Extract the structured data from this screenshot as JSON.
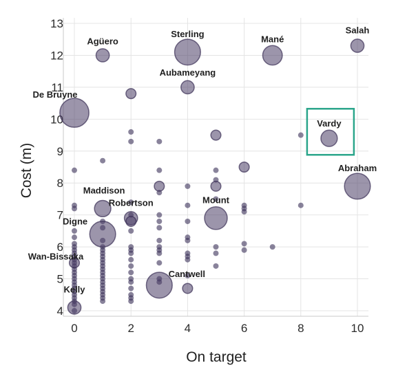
{
  "chart_data": {
    "type": "scatter",
    "xlabel": "On target",
    "ylabel": "Cost (m)",
    "xlim": [
      0,
      10
    ],
    "ylim": [
      4,
      13
    ],
    "x_ticks": [
      "0",
      "2",
      "4",
      "6",
      "8",
      "10"
    ],
    "y_ticks": [
      "4",
      "5",
      "6",
      "7",
      "8",
      "9",
      "10",
      "11",
      "12",
      "13"
    ],
    "grid": true,
    "bubbles": [
      {
        "x": 1,
        "y": 12.0,
        "size": 2,
        "label": "Agüero"
      },
      {
        "x": 4,
        "y": 12.1,
        "size": 6,
        "label": "Sterling"
      },
      {
        "x": 7,
        "y": 12.0,
        "size": 4,
        "label": "Mané"
      },
      {
        "x": 10,
        "y": 12.3,
        "size": 2,
        "label": "Salah"
      },
      {
        "x": 4,
        "y": 11.0,
        "size": 2,
        "label": "Aubameyang"
      },
      {
        "x": 0,
        "y": 10.2,
        "size": 7,
        "label": "De Bruyne"
      },
      {
        "x": 9,
        "y": 9.4,
        "size": 3,
        "label": "Vardy",
        "highlight": true
      },
      {
        "x": 10,
        "y": 7.9,
        "size": 6,
        "label": "Abraham"
      },
      {
        "x": 1,
        "y": 7.2,
        "size": 3,
        "label": "Maddison"
      },
      {
        "x": 2,
        "y": 6.9,
        "size": 2,
        "label": "Robertson"
      },
      {
        "x": 5,
        "y": 6.9,
        "size": 5,
        "label": "Mount"
      },
      {
        "x": 1,
        "y": 6.4,
        "size": 6,
        "label": "Digne"
      },
      {
        "x": 0,
        "y": 5.5,
        "size": 1,
        "label": "Wan-Bissaka"
      },
      {
        "x": 3,
        "y": 4.8,
        "size": 6,
        "label": "Cantwell"
      },
      {
        "x": 0,
        "y": 4.1,
        "size": 2,
        "label": "Kelly"
      },
      {
        "x": 2,
        "y": 10.8,
        "size": 1
      },
      {
        "x": 4,
        "y": 4.7,
        "size": 1
      },
      {
        "x": 6,
        "y": 8.5,
        "size": 1
      },
      {
        "x": 5,
        "y": 9.5,
        "size": 1
      },
      {
        "x": 2,
        "y": 6.8,
        "size": 1
      },
      {
        "x": 3,
        "y": 7.9,
        "size": 1
      },
      {
        "x": 5,
        "y": 7.9,
        "size": 1
      }
    ],
    "dots": [
      [
        0,
        8.4
      ],
      [
        0,
        7.3
      ],
      [
        0,
        7.2
      ],
      [
        0,
        6.5
      ],
      [
        0,
        6.3
      ],
      [
        0,
        6.1
      ],
      [
        0,
        6.0
      ],
      [
        0,
        5.9
      ],
      [
        0,
        5.8
      ],
      [
        0,
        5.7
      ],
      [
        0,
        5.6
      ],
      [
        0,
        5.5
      ],
      [
        0,
        5.4
      ],
      [
        0,
        5.3
      ],
      [
        0,
        5.2
      ],
      [
        0,
        5.1
      ],
      [
        0,
        5.0
      ],
      [
        0,
        4.9
      ],
      [
        0,
        4.8
      ],
      [
        0,
        4.7
      ],
      [
        0,
        4.6
      ],
      [
        0,
        4.5
      ],
      [
        0,
        4.4
      ],
      [
        0,
        4.3
      ],
      [
        0,
        4.2
      ],
      [
        0,
        4.0
      ],
      [
        1,
        8.7
      ],
      [
        1,
        6.8
      ],
      [
        1,
        6.6
      ],
      [
        1,
        6.2
      ],
      [
        1,
        6.0
      ],
      [
        1,
        5.9
      ],
      [
        1,
        5.8
      ],
      [
        1,
        5.7
      ],
      [
        1,
        5.6
      ],
      [
        1,
        5.5
      ],
      [
        1,
        5.4
      ],
      [
        1,
        5.3
      ],
      [
        1,
        5.2
      ],
      [
        1,
        5.1
      ],
      [
        1,
        5.0
      ],
      [
        1,
        4.9
      ],
      [
        1,
        4.8
      ],
      [
        1,
        4.7
      ],
      [
        1,
        4.6
      ],
      [
        1,
        4.5
      ],
      [
        1,
        4.4
      ],
      [
        1,
        4.3
      ],
      [
        2,
        9.6
      ],
      [
        2,
        9.3
      ],
      [
        2,
        7.4
      ],
      [
        2,
        7.0
      ],
      [
        2,
        6.5
      ],
      [
        2,
        6.0
      ],
      [
        2,
        5.9
      ],
      [
        2,
        5.8
      ],
      [
        2,
        5.6
      ],
      [
        2,
        5.4
      ],
      [
        2,
        5.2
      ],
      [
        2,
        5.0
      ],
      [
        2,
        4.9
      ],
      [
        2,
        4.7
      ],
      [
        2,
        4.5
      ],
      [
        2,
        4.4
      ],
      [
        2,
        4.3
      ],
      [
        3,
        9.3
      ],
      [
        3,
        8.4
      ],
      [
        3,
        7.7
      ],
      [
        3,
        7.0
      ],
      [
        3,
        6.8
      ],
      [
        3,
        6.6
      ],
      [
        3,
        6.2
      ],
      [
        3,
        6.0
      ],
      [
        3,
        5.9
      ],
      [
        3,
        5.8
      ],
      [
        3,
        5.5
      ],
      [
        3,
        5.0
      ],
      [
        3,
        4.9
      ],
      [
        4,
        7.9
      ],
      [
        4,
        7.3
      ],
      [
        4,
        6.8
      ],
      [
        4,
        6.3
      ],
      [
        4,
        6.2
      ],
      [
        4,
        5.8
      ],
      [
        4,
        5.7
      ],
      [
        4,
        5.6
      ],
      [
        4,
        5.1
      ],
      [
        5,
        8.4
      ],
      [
        5,
        8.1
      ],
      [
        5,
        7.5
      ],
      [
        5,
        6.0
      ],
      [
        5,
        5.8
      ],
      [
        5,
        5.4
      ],
      [
        6,
        7.3
      ],
      [
        6,
        7.2
      ],
      [
        6,
        7.1
      ],
      [
        6,
        6.1
      ],
      [
        6,
        5.9
      ],
      [
        7,
        6.0
      ],
      [
        8,
        9.5
      ],
      [
        8,
        7.3
      ]
    ]
  }
}
